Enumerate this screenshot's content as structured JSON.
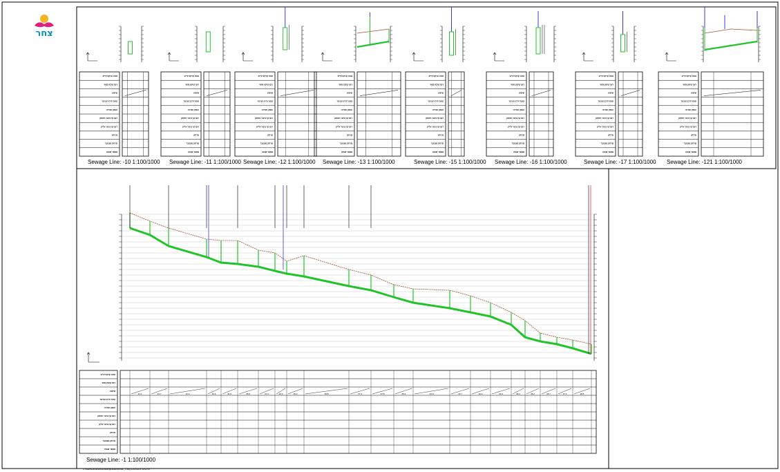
{
  "logo": {
    "text": "צחר",
    "colors": {
      "sun": "#f4b324",
      "flower": "#e0207f",
      "text": "#0a8fbf"
    }
  },
  "colors": {
    "ground": "#a0522d",
    "pipe": "#22c32a",
    "manhole": "#000000",
    "service": "#3a3adf",
    "end": "#e23a3a",
    "grid": "#bdbdbd",
    "frame": "#000000"
  },
  "table_row_labels": [
    "גובה קרקע קיים",
    "רום קרקע סופי",
    "שיפוע",
    "קוטר ודרג הצינור",
    "עומק חפירה",
    "רום קר צינור תחתון",
    "רום קר צינור עליון",
    "מרחק",
    "מרחק מצטבר",
    "מספר שוחה"
  ],
  "profiles": [
    {
      "label": "Sewage Line: -10",
      "scale": "1:100/1000"
    },
    {
      "label": "Sewage Line: -11",
      "scale": "1:100/1000"
    },
    {
      "label": "Sewage Line: -12",
      "scale": "1:100/1000"
    },
    {
      "label": "Sewage Line: -13",
      "scale": "1:100/1000"
    },
    {
      "label": "Sewage Line: -15",
      "scale": "1:100/1000"
    },
    {
      "label": "Sewage Line: -16",
      "scale": "1:100/1000"
    },
    {
      "label": "Sewage Line: -17",
      "scale": "1:100/1000"
    },
    {
      "label": "Sewage Line: -121",
      "scale": "1:100/1000"
    }
  ],
  "main_profile": {
    "label": "Sewage Line: -1",
    "scale": "1:100/1000",
    "slopes": [
      "34.1",
      "33.7",
      "31.4",
      "33.6",
      "34.6",
      "35.8",
      "37.3",
      "34.3",
      "35.2",
      "36.8",
      "37.4",
      "37.8",
      "35.3",
      "33.0",
      "33.7",
      "34.4",
      "34.6",
      "36.6",
      "35.2",
      "36.7",
      "37.1",
      "38.5",
      "37.6"
    ]
  },
  "footer_text": "C:\\Users\\Documents\\Drawings\\sewer\\profile_1.dwg  31/05/2018  10:42:15"
}
